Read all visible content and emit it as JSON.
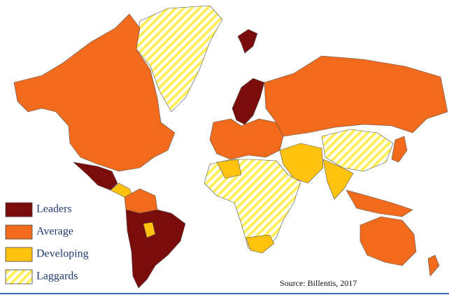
{
  "legend": {
    "items": [
      {
        "label": "Leaders",
        "color": "#7a0c0c"
      },
      {
        "label": "Average",
        "color": "#f26b1d"
      },
      {
        "label": "Developing",
        "color": "#ffc20e"
      },
      {
        "label": "Laggards",
        "color": "#ffef5a",
        "pattern": "hatch"
      }
    ]
  },
  "source": "Source: Billentis, 2017"
}
